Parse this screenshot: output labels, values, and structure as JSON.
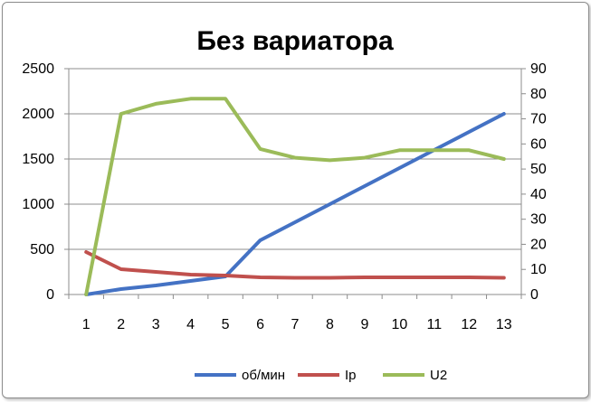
{
  "chart_data": {
    "type": "line",
    "title": "Без вариатора",
    "categories": [
      "1",
      "2",
      "3",
      "4",
      "5",
      "6",
      "7",
      "8",
      "9",
      "10",
      "11",
      "12",
      "13"
    ],
    "y_left": {
      "ylim": [
        0,
        2500
      ],
      "ticks": [
        "0",
        "500",
        "1000",
        "1500",
        "2000",
        "2500"
      ]
    },
    "y_right": {
      "ylim": [
        0,
        90
      ],
      "ticks": [
        "0",
        "10",
        "20",
        "30",
        "40",
        "50",
        "60",
        "70",
        "80",
        "90"
      ]
    },
    "grid": true,
    "legend_position": "bottom",
    "series": [
      {
        "name": "об/мин",
        "axis": "left",
        "color": "#4472C4",
        "values": [
          0,
          60,
          100,
          150,
          200,
          600,
          800,
          1000,
          1200,
          1400,
          1600,
          1800,
          2000
        ]
      },
      {
        "name": "Ip",
        "axis": "left",
        "color": "#C0504D",
        "values": [
          470,
          280,
          250,
          220,
          210,
          190,
          185,
          185,
          190,
          190,
          190,
          190,
          185
        ]
      },
      {
        "name": "U2",
        "axis": "right",
        "color": "#9BBB59",
        "values": [
          0,
          72,
          76,
          78,
          78,
          58,
          54.5,
          53.5,
          54.5,
          57.5,
          57.5,
          57.5,
          54
        ]
      }
    ]
  }
}
